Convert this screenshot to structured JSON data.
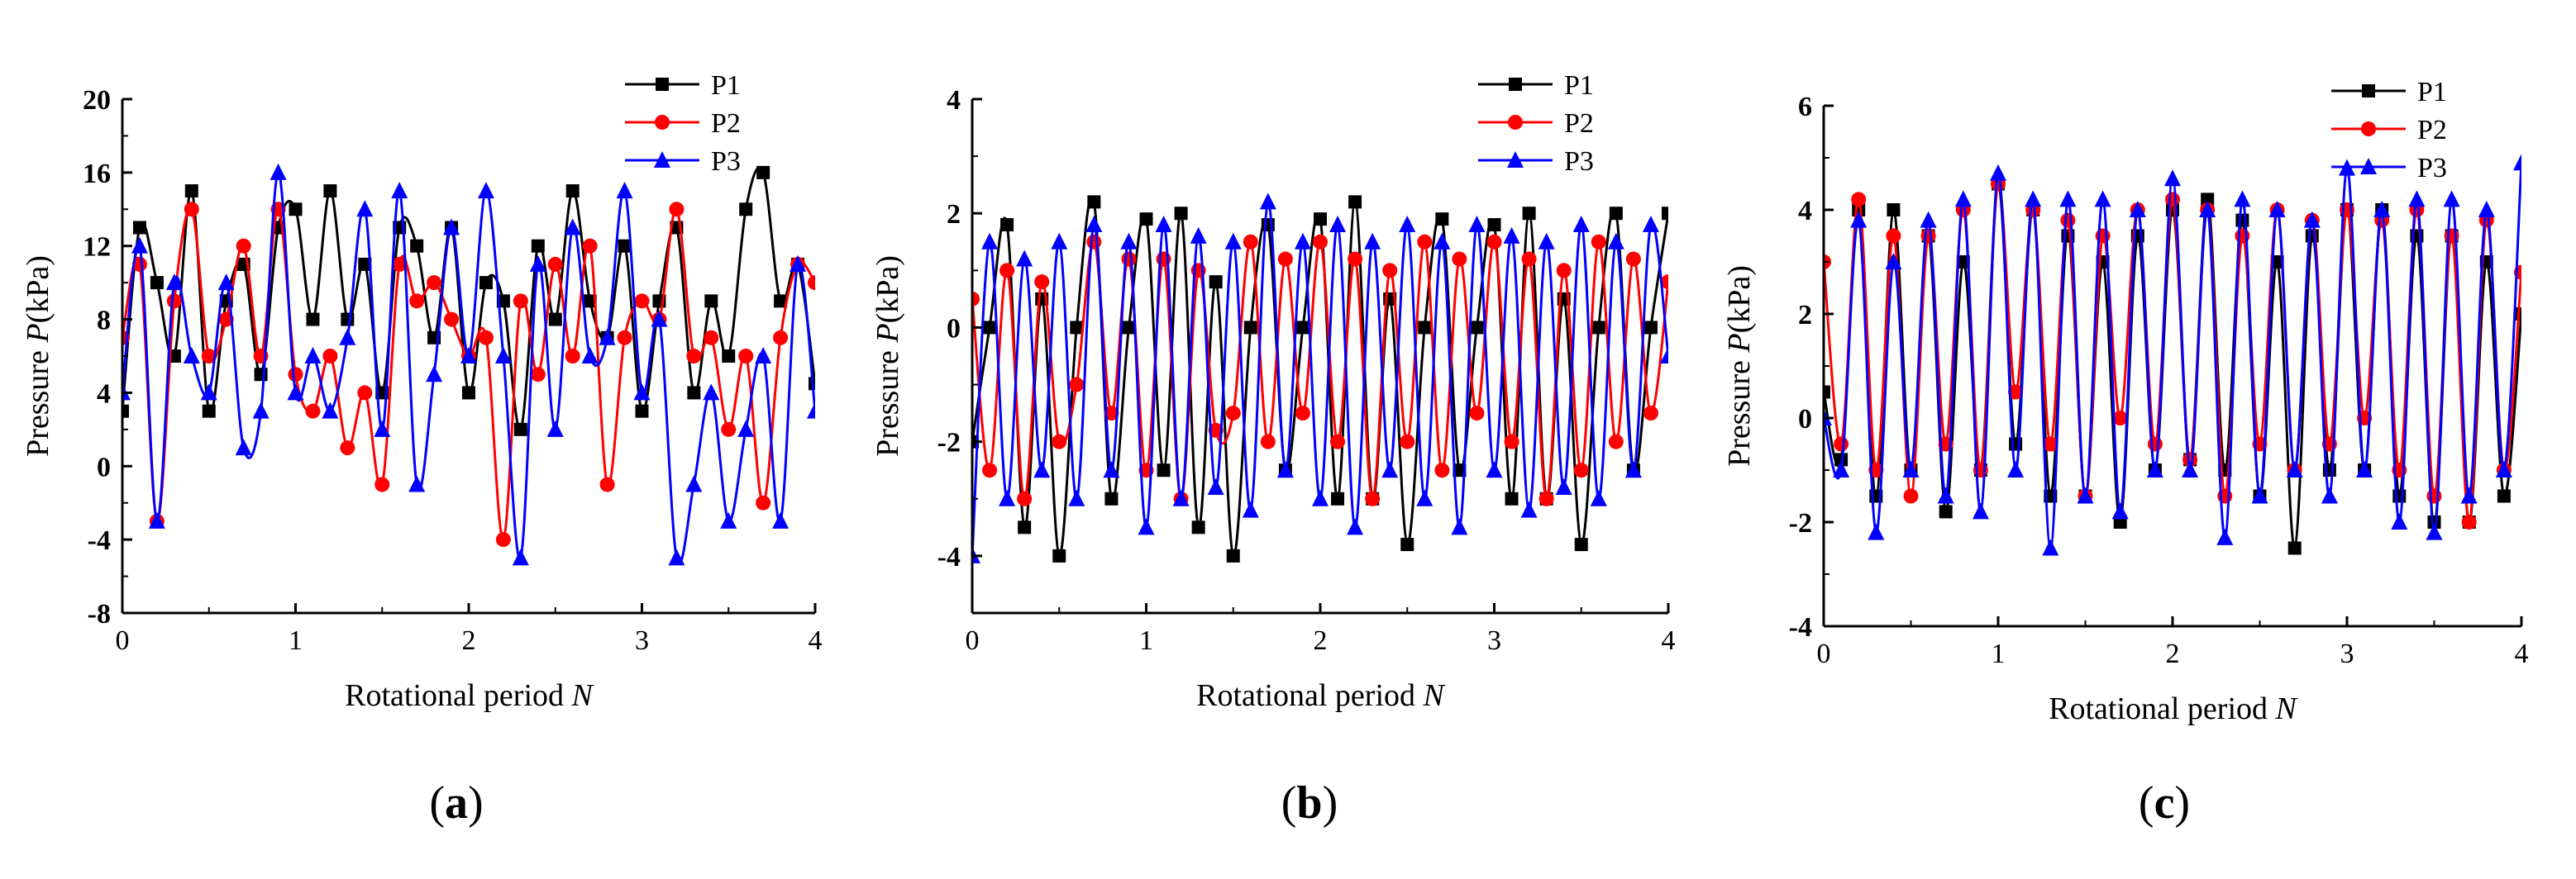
{
  "figure": {
    "panels": [
      {
        "label_open": "(",
        "label_letter": "a",
        "label_close": ")"
      },
      {
        "label_open": "(",
        "label_letter": "b",
        "label_close": ")"
      },
      {
        "label_open": "(",
        "label_letter": "c",
        "label_close": ")"
      }
    ]
  },
  "colors": {
    "P1": "#000000",
    "P2": "#ff0000",
    "P3": "#0000ff"
  },
  "chart_data": [
    {
      "type": "line",
      "panel": "a",
      "title": "",
      "xlabel_prefix": "Rotational period ",
      "xlabel_var": "N",
      "ylabel_prefix": "Pressure  ",
      "ylabel_var": "P",
      "ylabel_unit": "(kPa)",
      "xlim": [
        0,
        4
      ],
      "ylim": [
        -8,
        20
      ],
      "xticks": [
        0,
        1,
        2,
        3,
        4
      ],
      "yticks": [
        -8,
        -4,
        0,
        4,
        8,
        12,
        16,
        20
      ],
      "legend_position": "top-right",
      "grid": false,
      "series": [
        {
          "name": "P1",
          "marker": "square",
          "x": [
            0,
            0.1,
            0.2,
            0.3,
            0.4,
            0.5,
            0.6,
            0.7,
            0.8,
            0.9,
            1.0,
            1.1,
            1.2,
            1.3,
            1.4,
            1.5,
            1.6,
            1.7,
            1.8,
            1.9,
            2.0,
            2.1,
            2.2,
            2.3,
            2.4,
            2.5,
            2.6,
            2.7,
            2.8,
            2.9,
            3.0,
            3.1,
            3.2,
            3.3,
            3.4,
            3.5,
            3.6,
            3.7,
            3.8,
            3.9,
            4.0
          ],
          "y": [
            3,
            13,
            10,
            6,
            15,
            3,
            9,
            11,
            5,
            13,
            14,
            8,
            15,
            8,
            11,
            4,
            13,
            12,
            7,
            13,
            4,
            10,
            9,
            2,
            12,
            8,
            15,
            9,
            7,
            12,
            3,
            9,
            13,
            4,
            9,
            6,
            14,
            16,
            9,
            11,
            4.5
          ]
        },
        {
          "name": "P2",
          "marker": "circle",
          "x": [
            0,
            0.1,
            0.2,
            0.3,
            0.4,
            0.5,
            0.6,
            0.7,
            0.8,
            0.9,
            1.0,
            1.1,
            1.2,
            1.3,
            1.4,
            1.5,
            1.6,
            1.7,
            1.8,
            1.9,
            2.0,
            2.1,
            2.2,
            2.3,
            2.4,
            2.5,
            2.6,
            2.7,
            2.8,
            2.9,
            3.0,
            3.1,
            3.2,
            3.3,
            3.4,
            3.5,
            3.6,
            3.7,
            3.8,
            3.9,
            4.0
          ],
          "y": [
            7,
            11,
            -3,
            9,
            14,
            6,
            8,
            12,
            6,
            14,
            5,
            3,
            6,
            1,
            4,
            -1,
            11,
            9,
            10,
            8,
            6,
            7,
            -4,
            9,
            5,
            11,
            6,
            12,
            -1,
            7,
            9,
            8,
            14,
            6,
            7,
            2,
            6,
            -2,
            7,
            11,
            10
          ]
        },
        {
          "name": "P3",
          "marker": "triangle",
          "x": [
            0,
            0.1,
            0.2,
            0.3,
            0.4,
            0.5,
            0.6,
            0.7,
            0.8,
            0.9,
            1.0,
            1.1,
            1.2,
            1.3,
            1.4,
            1.5,
            1.6,
            1.7,
            1.8,
            1.9,
            2.0,
            2.1,
            2.2,
            2.3,
            2.4,
            2.5,
            2.6,
            2.7,
            2.8,
            2.9,
            3.0,
            3.1,
            3.2,
            3.3,
            3.4,
            3.5,
            3.6,
            3.7,
            3.8,
            3.9,
            4.0
          ],
          "y": [
            4,
            12,
            -3,
            10,
            6,
            4,
            10,
            1,
            3,
            16,
            4,
            6,
            3,
            7,
            14,
            2,
            15,
            -1,
            5,
            13,
            6,
            15,
            6,
            -5,
            11,
            2,
            13,
            6,
            7,
            15,
            4,
            8,
            -5,
            -1,
            4,
            -3,
            2,
            6,
            -3,
            11,
            3
          ]
        }
      ]
    },
    {
      "type": "line",
      "panel": "b",
      "title": "",
      "xlabel_prefix": "Rotational period ",
      "xlabel_var": "N",
      "ylabel_prefix": "Pressure  ",
      "ylabel_var": "P",
      "ylabel_unit": "(kPa)",
      "xlim": [
        0,
        4
      ],
      "ylim": [
        -5,
        4
      ],
      "xticks": [
        0,
        1,
        2,
        3,
        4
      ],
      "yticks": [
        -4,
        -2,
        0,
        2,
        4
      ],
      "legend_position": "top-right",
      "grid": false,
      "series": [
        {
          "name": "P1",
          "marker": "square",
          "x": [
            0,
            0.1,
            0.2,
            0.3,
            0.4,
            0.5,
            0.6,
            0.7,
            0.8,
            0.9,
            1.0,
            1.1,
            1.2,
            1.3,
            1.4,
            1.5,
            1.6,
            1.7,
            1.8,
            1.9,
            2.0,
            2.1,
            2.2,
            2.3,
            2.4,
            2.5,
            2.6,
            2.7,
            2.8,
            2.9,
            3.0,
            3.1,
            3.2,
            3.3,
            3.4,
            3.5,
            3.6,
            3.7,
            3.8,
            3.9,
            4.0
          ],
          "y": [
            -2,
            0,
            1.8,
            -3.5,
            0.5,
            -4,
            0,
            2.2,
            -3,
            0,
            1.9,
            -2.5,
            2,
            -3.5,
            0.8,
            -4,
            0,
            1.8,
            -2.5,
            0,
            1.9,
            -3,
            2.2,
            -3,
            0.5,
            -3.8,
            0,
            1.9,
            -2.5,
            0,
            1.8,
            -3,
            2,
            -3,
            0.5,
            -3.8,
            0,
            2,
            -2.5,
            0,
            2
          ]
        },
        {
          "name": "P2",
          "marker": "circle",
          "x": [
            0,
            0.1,
            0.2,
            0.3,
            0.4,
            0.5,
            0.6,
            0.7,
            0.8,
            0.9,
            1.0,
            1.1,
            1.2,
            1.3,
            1.4,
            1.5,
            1.6,
            1.7,
            1.8,
            1.9,
            2.0,
            2.1,
            2.2,
            2.3,
            2.4,
            2.5,
            2.6,
            2.7,
            2.8,
            2.9,
            3.0,
            3.1,
            3.2,
            3.3,
            3.4,
            3.5,
            3.6,
            3.7,
            3.8,
            3.9,
            4.0
          ],
          "y": [
            0.5,
            -2.5,
            1,
            -3,
            0.8,
            -2,
            -1,
            1.5,
            -1.5,
            1.2,
            -2.5,
            1.2,
            -3,
            1,
            -1.8,
            -1.5,
            1.5,
            -2,
            1.2,
            -1.5,
            1.5,
            -2,
            1.2,
            -3,
            1,
            -2,
            1.5,
            -2.5,
            1.2,
            -1.5,
            1.5,
            -2,
            1.2,
            -3,
            1,
            -2.5,
            1.5,
            -2,
            1.2,
            -1.5,
            0.8
          ]
        },
        {
          "name": "P3",
          "marker": "triangle",
          "x": [
            0,
            0.1,
            0.2,
            0.3,
            0.4,
            0.5,
            0.6,
            0.7,
            0.8,
            0.9,
            1.0,
            1.1,
            1.2,
            1.3,
            1.4,
            1.5,
            1.6,
            1.7,
            1.8,
            1.9,
            2.0,
            2.1,
            2.2,
            2.3,
            2.4,
            2.5,
            2.6,
            2.7,
            2.8,
            2.9,
            3.0,
            3.1,
            3.2,
            3.3,
            3.4,
            3.5,
            3.6,
            3.7,
            3.8,
            3.9,
            4.0
          ],
          "y": [
            -4,
            1.5,
            -3,
            1.2,
            -2.5,
            1.5,
            -3,
            1.8,
            -2.5,
            1.5,
            -3.5,
            1.8,
            -3,
            1.6,
            -2.8,
            1.5,
            -3.2,
            2.2,
            -2.5,
            1.5,
            -3,
            1.8,
            -3.5,
            1.5,
            -2.5,
            1.8,
            -3,
            1.5,
            -3.5,
            1.8,
            -2.5,
            1.6,
            -3.2,
            1.5,
            -2.8,
            1.8,
            -3,
            1.5,
            -2.5,
            1.8,
            -0.5
          ]
        }
      ]
    },
    {
      "type": "line",
      "panel": "c",
      "title": "",
      "xlabel_prefix": "Rotational period ",
      "xlabel_var": "N",
      "ylabel_prefix": "Pressure  ",
      "ylabel_var": "P",
      "ylabel_unit": "(kPa)",
      "xlim": [
        0,
        4
      ],
      "ylim": [
        -4,
        6
      ],
      "xticks": [
        0,
        1,
        2,
        3,
        4
      ],
      "yticks": [
        -4,
        -2,
        0,
        2,
        4,
        6
      ],
      "legend_position": "top-right",
      "grid": false,
      "series": [
        {
          "name": "P1",
          "marker": "square",
          "x": [
            0,
            0.1,
            0.2,
            0.3,
            0.4,
            0.5,
            0.6,
            0.7,
            0.8,
            0.9,
            1.0,
            1.1,
            1.2,
            1.3,
            1.4,
            1.5,
            1.6,
            1.7,
            1.8,
            1.9,
            2.0,
            2.1,
            2.2,
            2.3,
            2.4,
            2.5,
            2.6,
            2.7,
            2.8,
            2.9,
            3.0,
            3.1,
            3.2,
            3.3,
            3.4,
            3.5,
            3.6,
            3.7,
            3.8,
            3.9,
            4.0
          ],
          "y": [
            0.5,
            -0.8,
            4,
            -1.5,
            4,
            -1,
            3.5,
            -1.8,
            3,
            -1,
            4.5,
            -0.5,
            4,
            -1.5,
            3.5,
            -1.5,
            3,
            -2,
            3.5,
            -1,
            4,
            -0.8,
            4.2,
            -1,
            3.8,
            -1.5,
            3,
            -2.5,
            3.5,
            -1,
            4,
            -1,
            4,
            -1.5,
            3.5,
            -2,
            3.5,
            -2,
            3,
            -1.5,
            2
          ]
        },
        {
          "name": "P2",
          "marker": "circle",
          "x": [
            0,
            0.1,
            0.2,
            0.3,
            0.4,
            0.5,
            0.6,
            0.7,
            0.8,
            0.9,
            1.0,
            1.1,
            1.2,
            1.3,
            1.4,
            1.5,
            1.6,
            1.7,
            1.8,
            1.9,
            2.0,
            2.1,
            2.2,
            2.3,
            2.4,
            2.5,
            2.6,
            2.7,
            2.8,
            2.9,
            3.0,
            3.1,
            3.2,
            3.3,
            3.4,
            3.5,
            3.6,
            3.7,
            3.8,
            3.9,
            4.0
          ],
          "y": [
            3,
            -0.5,
            4.2,
            -1,
            3.5,
            -1.5,
            3.5,
            -0.5,
            4,
            -1,
            4.5,
            0.5,
            4,
            -0.5,
            3.8,
            -1.5,
            3.5,
            0,
            4,
            -0.5,
            4.2,
            -0.8,
            4,
            -1.5,
            3.5,
            -0.5,
            4,
            -1,
            3.8,
            -0.5,
            4,
            0,
            3.8,
            -1,
            4,
            -1.5,
            3.5,
            -2,
            3.8,
            -1,
            2.8
          ]
        },
        {
          "name": "P3",
          "marker": "triangle",
          "x": [
            0,
            0.1,
            0.2,
            0.3,
            0.4,
            0.5,
            0.6,
            0.7,
            0.8,
            0.9,
            1.0,
            1.1,
            1.2,
            1.3,
            1.4,
            1.5,
            1.6,
            1.7,
            1.8,
            1.9,
            2.0,
            2.1,
            2.2,
            2.3,
            2.4,
            2.5,
            2.6,
            2.7,
            2.8,
            2.9,
            3.0,
            3.1,
            3.2,
            3.3,
            3.4,
            3.5,
            3.6,
            3.7,
            3.8,
            3.9,
            4.0
          ],
          "y": [
            0,
            -1,
            3.8,
            -2.2,
            3,
            -1,
            3.8,
            -1.5,
            4.2,
            -1.8,
            4.7,
            -1,
            4.2,
            -2.5,
            4.2,
            -1.5,
            4.2,
            -1.8,
            4,
            -1,
            4.6,
            -1,
            4,
            -2.3,
            4.2,
            -1.5,
            4,
            -1,
            3.8,
            -1.5,
            4.8,
            -1,
            4,
            -2,
            4.2,
            -2.2,
            4.2,
            -1.5,
            4,
            -1,
            4.9
          ]
        }
      ]
    }
  ]
}
